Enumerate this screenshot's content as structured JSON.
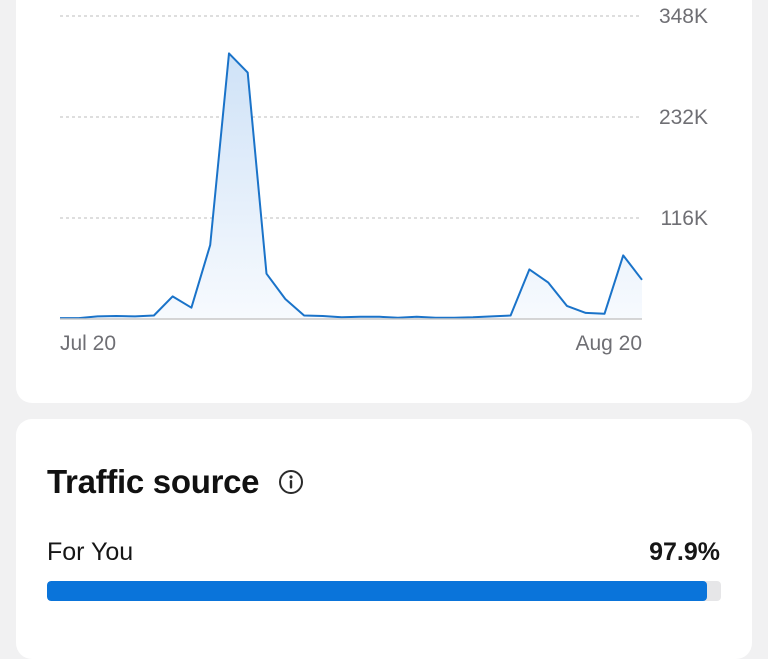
{
  "chart_data": {
    "type": "area",
    "x_tick_labels": [
      "Jul 20",
      "Aug 20"
    ],
    "y_tick_labels": [
      "116K",
      "232K",
      "348K"
    ],
    "y_ticks": [
      116000,
      232000,
      348000
    ],
    "ylim": [
      0,
      348000
    ],
    "grid": true,
    "series": [
      {
        "values": [
          1000,
          1000,
          3000,
          3500,
          3000,
          4000,
          26000,
          13000,
          85000,
          305000,
          283000,
          52000,
          23000,
          4000,
          3500,
          2000,
          2500,
          2500,
          1500,
          2500,
          1500,
          1500,
          2000,
          3000,
          4000,
          57000,
          42000,
          15000,
          7000,
          6000,
          73000,
          45000
        ]
      }
    ],
    "colors": {
      "line": "#1a73c9",
      "fill_top": "#cfe2f7",
      "fill_bottom": "#f7fafe",
      "grid": "#bdbdbd"
    }
  },
  "traffic_source": {
    "title": "Traffic source",
    "info_icon": "info-icon",
    "rows": [
      {
        "label": "For You",
        "value": "97.9%",
        "percent": 97.9
      }
    ],
    "bar_color": "#0a74da"
  }
}
